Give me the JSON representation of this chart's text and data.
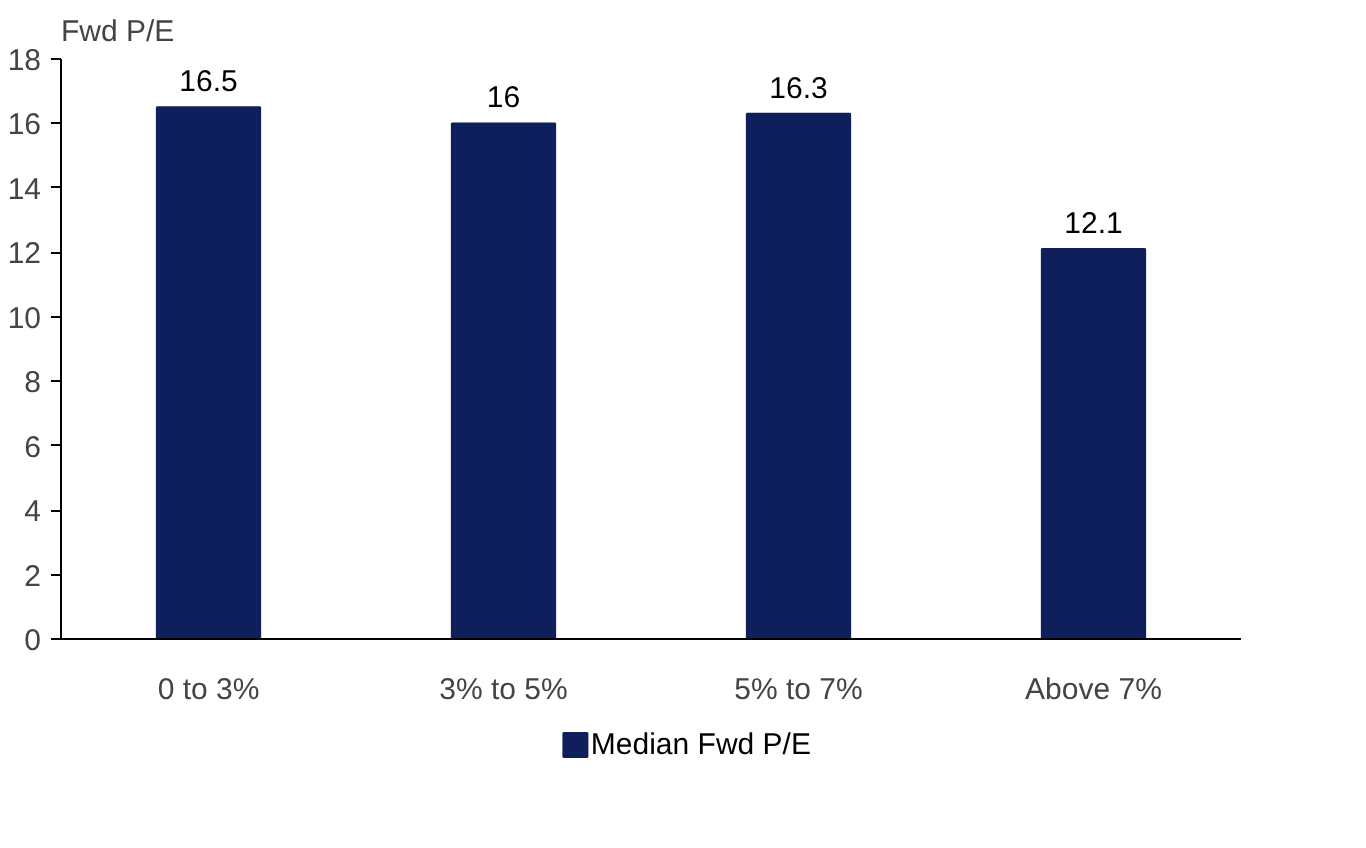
{
  "chart_data": {
    "type": "bar",
    "ylabel": "Fwd P/E",
    "categories": [
      "0 to 3%",
      "3% to 5%",
      "5% to 7%",
      "Above 7%"
    ],
    "series": [
      {
        "name": "Median Fwd P/E",
        "color": "#0f1f5c",
        "values": [
          16.5,
          16,
          16.3,
          12.1
        ]
      }
    ],
    "ylim": [
      0,
      18
    ],
    "yticks": [
      0,
      2,
      4,
      6,
      8,
      10,
      12,
      14,
      16,
      18
    ],
    "data_labels": true,
    "legend": "bottom",
    "grid": false
  }
}
